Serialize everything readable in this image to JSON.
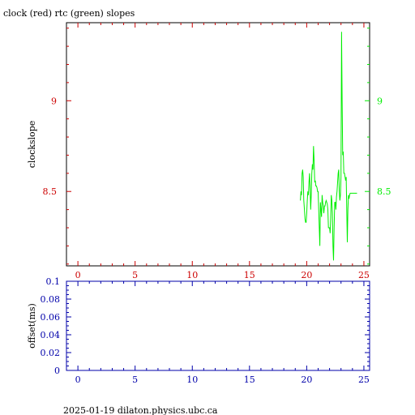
{
  "title": "clock (red) rtc (green) slopes",
  "footer": "2025-01-19 dilaton.physics.ubc.ca",
  "colors": {
    "clock": "#cc0000",
    "rtc": "#00ee00",
    "axis_bottom": "#0000aa",
    "frame": "#000000"
  },
  "chart_data": [
    {
      "type": "line",
      "name": "slopes",
      "ylabel": "clockslope",
      "xlim": [
        -1,
        25.5
      ],
      "ylim": [
        8.09,
        9.43
      ],
      "x_ticks": [
        0,
        5,
        10,
        15,
        20,
        25
      ],
      "y_ticks_left": [
        8.5,
        9
      ],
      "y_ticks_right": [
        8.5,
        9
      ],
      "grid": false,
      "series": [
        {
          "color": "green",
          "x": [
            19.45,
            19.5,
            19.55,
            19.6,
            19.65,
            19.7,
            19.75,
            19.8,
            19.85,
            19.9,
            19.95,
            20.0,
            20.05,
            20.1,
            20.15,
            20.2,
            20.25,
            20.3,
            20.35,
            20.4,
            20.45,
            20.5,
            20.55,
            20.6,
            20.65,
            20.7,
            20.75,
            20.8,
            20.85,
            20.9,
            20.95,
            21.0,
            21.05,
            21.1,
            21.15,
            21.2,
            21.25,
            21.3,
            21.35,
            21.4,
            21.45,
            21.5,
            21.55,
            21.6,
            21.65,
            21.7,
            21.75,
            21.8,
            21.85,
            21.9,
            21.95,
            22.0,
            22.05,
            22.1,
            22.15,
            22.2,
            22.25,
            22.3,
            22.35,
            22.4,
            22.45,
            22.5,
            22.55,
            22.6,
            22.65,
            22.7,
            22.75,
            22.8,
            22.85,
            22.9,
            22.95,
            23.0,
            23.05,
            23.1,
            23.15,
            23.2,
            23.25,
            23.3,
            23.35,
            23.4,
            23.45,
            23.5,
            23.55,
            23.6,
            23.65,
            23.7,
            23.75,
            23.8,
            23.85,
            23.9,
            23.95,
            24.0,
            24.05,
            24.1,
            24.15,
            24.2,
            24.25,
            24.3,
            24.35,
            24.4
          ],
          "y": [
            8.45,
            8.5,
            8.48,
            8.6,
            8.62,
            8.58,
            8.45,
            8.4,
            8.35,
            8.33,
            8.33,
            8.38,
            8.45,
            8.5,
            8.48,
            8.55,
            8.6,
            8.52,
            8.4,
            8.48,
            8.6,
            8.65,
            8.62,
            8.75,
            8.66,
            8.55,
            8.56,
            8.53,
            8.53,
            8.52,
            8.5,
            8.5,
            8.4,
            8.3,
            8.2,
            8.44,
            8.4,
            8.36,
            8.48,
            8.44,
            8.42,
            8.38,
            8.42,
            8.42,
            8.44,
            8.45,
            8.44,
            8.43,
            8.4,
            8.3,
            8.3,
            8.3,
            8.27,
            8.35,
            8.48,
            8.45,
            8.38,
            8.2,
            8.12,
            8.3,
            8.44,
            8.44,
            8.4,
            8.47,
            8.5,
            8.55,
            8.6,
            8.62,
            8.5,
            8.45,
            8.48,
            8.58,
            9.38,
            9.0,
            8.7,
            8.72,
            8.6,
            8.6,
            8.58,
            8.56,
            8.58,
            8.4,
            8.22,
            8.4,
            8.48,
            8.46,
            8.48,
            8.49,
            8.49,
            8.49,
            8.49,
            8.49,
            8.49,
            8.49,
            8.49,
            8.49,
            8.49,
            8.49,
            8.49,
            8.49
          ]
        }
      ]
    },
    {
      "type": "line",
      "name": "offset",
      "ylabel": "offset(ms)",
      "xlim": [
        -1,
        25.5
      ],
      "ylim": [
        0,
        0.1
      ],
      "x_ticks": [
        0,
        5,
        10,
        15,
        20,
        25
      ],
      "y_ticks": [
        0,
        0.02,
        0.04,
        0.06,
        0.08,
        0.1
      ],
      "y_tick_labels": [
        "0",
        "0.02",
        "0.04",
        "0.06",
        "0.08",
        "0.1"
      ],
      "grid": false,
      "series": []
    }
  ]
}
